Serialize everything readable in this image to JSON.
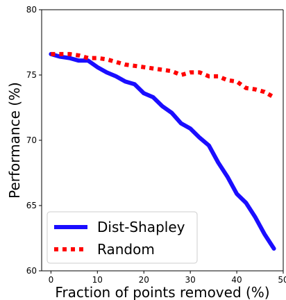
{
  "chart_data": {
    "type": "line",
    "xlabel": "Fraction of points removed (%)",
    "ylabel": "Performance (%)",
    "xlim": [
      -2,
      50
    ],
    "ylim": [
      60,
      80
    ],
    "xticks": [
      "0",
      "10",
      "20",
      "30",
      "40",
      "50"
    ],
    "yticks": [
      "60",
      "65",
      "70",
      "75",
      "80"
    ],
    "legend_position": "lower-left",
    "series": [
      {
        "name": "Dist-Shapley",
        "color": "#1a0dff",
        "style": "solid",
        "x": [
          0,
          2,
          4,
          6,
          8,
          10,
          12,
          14,
          16,
          18,
          20,
          22,
          24,
          26,
          28,
          30,
          32,
          34,
          36,
          38,
          40,
          42,
          44,
          46,
          48
        ],
        "y": [
          76.6,
          76.4,
          76.3,
          76.1,
          76.1,
          75.6,
          75.2,
          74.9,
          74.5,
          74.3,
          73.6,
          73.3,
          72.6,
          72.1,
          71.3,
          70.9,
          70.2,
          69.6,
          68.3,
          67.2,
          65.9,
          65.2,
          64.1,
          62.8,
          61.7
        ]
      },
      {
        "name": "Random",
        "color": "#ff0000",
        "style": "dotted",
        "x": [
          0,
          2,
          4,
          6,
          8,
          10,
          12,
          14,
          16,
          18,
          20,
          22,
          24,
          26,
          28,
          30,
          32,
          34,
          36,
          38,
          40,
          42,
          44,
          46,
          48
        ],
        "y": [
          76.6,
          76.6,
          76.6,
          76.5,
          76.3,
          76.3,
          76.2,
          76.0,
          75.8,
          75.7,
          75.6,
          75.5,
          75.4,
          75.3,
          75.0,
          75.2,
          75.2,
          74.9,
          74.9,
          74.6,
          74.5,
          74.0,
          73.9,
          73.7,
          73.3
        ]
      }
    ]
  }
}
